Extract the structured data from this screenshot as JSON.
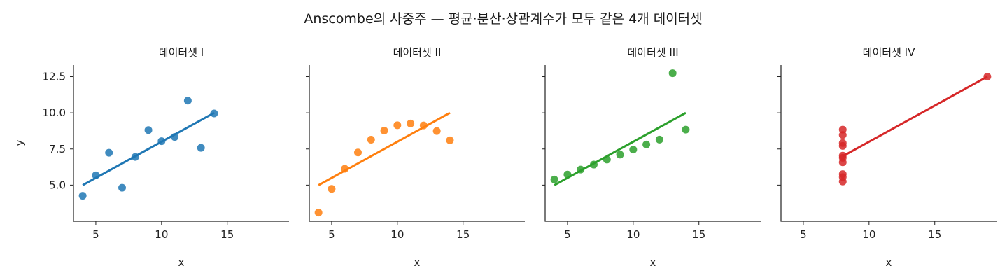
{
  "chart_data": {
    "type": "scatter",
    "title": "Anscombe의 사중주 — 평균·분산·상관계수가 모두 같은 4개 데이터셋",
    "xlabel": "x",
    "ylabel": "y",
    "xlim": [
      3.3,
      19.7
    ],
    "ylim": [
      2.5,
      13.3
    ],
    "xticks": [
      5,
      10,
      15
    ],
    "xtick_labels": [
      "5",
      "10",
      "15"
    ],
    "yticks": [
      5.0,
      7.5,
      10.0,
      12.5
    ],
    "ytick_labels": [
      "5.0",
      "7.5",
      "10.0",
      "12.5"
    ],
    "shared_axes": true,
    "grid": false,
    "panels": [
      {
        "name": "데이터셋 I",
        "color": "#1f77b4",
        "x": [
          10,
          8,
          13,
          9,
          11,
          14,
          6,
          4,
          12,
          7,
          5
        ],
        "y": [
          8.04,
          6.95,
          7.58,
          8.81,
          8.33,
          9.96,
          7.24,
          4.26,
          10.84,
          4.82,
          5.68
        ],
        "fit": {
          "slope": 0.5,
          "intercept": 3.0,
          "x_range": [
            4,
            14
          ]
        }
      },
      {
        "name": "데이터셋 II",
        "color": "#ff7f0e",
        "x": [
          10,
          8,
          13,
          9,
          11,
          14,
          6,
          4,
          12,
          7,
          5
        ],
        "y": [
          9.14,
          8.14,
          8.74,
          8.77,
          9.26,
          8.1,
          6.13,
          3.1,
          9.13,
          7.26,
          4.74
        ],
        "fit": {
          "slope": 0.5,
          "intercept": 3.0,
          "x_range": [
            4,
            14
          ]
        }
      },
      {
        "name": "데이터셋 III",
        "color": "#2ca02c",
        "x": [
          10,
          8,
          13,
          9,
          11,
          14,
          6,
          4,
          12,
          7,
          5
        ],
        "y": [
          7.46,
          6.77,
          12.74,
          7.11,
          7.81,
          8.84,
          6.08,
          5.39,
          8.15,
          6.42,
          5.73
        ],
        "fit": {
          "slope": 0.5,
          "intercept": 3.0,
          "x_range": [
            4,
            14
          ]
        }
      },
      {
        "name": "데이터셋 IV",
        "color": "#d62728",
        "x": [
          8,
          8,
          8,
          8,
          8,
          8,
          8,
          19,
          8,
          8,
          8
        ],
        "y": [
          6.58,
          5.76,
          7.71,
          8.84,
          8.47,
          7.04,
          5.25,
          12.5,
          5.56,
          7.91,
          6.89
        ],
        "fit": {
          "slope": 0.5,
          "intercept": 3.0,
          "x_range": [
            8,
            19
          ]
        }
      }
    ]
  }
}
